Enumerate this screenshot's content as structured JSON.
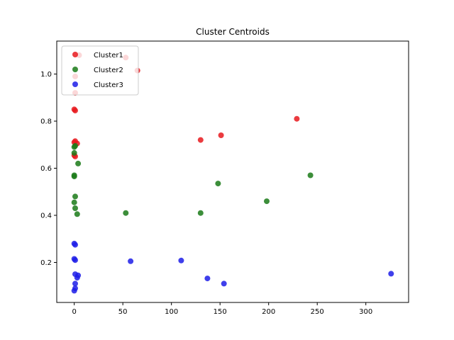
{
  "chart_data": {
    "type": "scatter",
    "title": "Cluster Centroids",
    "xlabel": "",
    "ylabel": "",
    "xlim": [
      -18,
      344
    ],
    "ylim": [
      0.03,
      1.14
    ],
    "xticks": [
      0,
      50,
      100,
      150,
      200,
      250,
      300
    ],
    "yticks": [
      0.2,
      0.4,
      0.6,
      0.8,
      1.0
    ],
    "xtick_labels": [
      "0",
      "50",
      "100",
      "150",
      "200",
      "250",
      "300"
    ],
    "ytick_labels": [
      "0.2",
      "0.4",
      "0.6",
      "0.8",
      "1.0"
    ],
    "grid": false,
    "legend": "top-left",
    "series": [
      {
        "name": "Cluster1",
        "color": "#e8191d",
        "points": [
          [
            5,
            1.08
          ],
          [
            53,
            1.07
          ],
          [
            65,
            1.015
          ],
          [
            1,
            0.99
          ],
          [
            1,
            0.92
          ],
          [
            0,
            0.85
          ],
          [
            1,
            0.845
          ],
          [
            1,
            0.715
          ],
          [
            0,
            0.71
          ],
          [
            3,
            0.705
          ],
          [
            0,
            0.655
          ],
          [
            1,
            0.65
          ],
          [
            130,
            0.72
          ],
          [
            151,
            0.74
          ],
          [
            229,
            0.81
          ]
        ]
      },
      {
        "name": "Cluster2",
        "color": "#1a7a17",
        "points": [
          [
            0,
            0.69
          ],
          [
            1,
            0.695
          ],
          [
            0,
            0.665
          ],
          [
            4,
            0.62
          ],
          [
            0,
            0.57
          ],
          [
            0,
            0.565
          ],
          [
            1,
            0.48
          ],
          [
            0,
            0.455
          ],
          [
            1,
            0.43
          ],
          [
            3,
            0.405
          ],
          [
            53,
            0.41
          ],
          [
            130,
            0.41
          ],
          [
            148,
            0.535
          ],
          [
            198,
            0.46
          ],
          [
            243,
            0.57
          ]
        ]
      },
      {
        "name": "Cluster3",
        "color": "#1d1de8",
        "points": [
          [
            0,
            0.28
          ],
          [
            1,
            0.275
          ],
          [
            0,
            0.215
          ],
          [
            1,
            0.21
          ],
          [
            1,
            0.15
          ],
          [
            4,
            0.145
          ],
          [
            3,
            0.135
          ],
          [
            1,
            0.11
          ],
          [
            1,
            0.09
          ],
          [
            0,
            0.08
          ],
          [
            58,
            0.205
          ],
          [
            110,
            0.208
          ],
          [
            137,
            0.132
          ],
          [
            154,
            0.11
          ],
          [
            326,
            0.152
          ]
        ]
      }
    ]
  }
}
